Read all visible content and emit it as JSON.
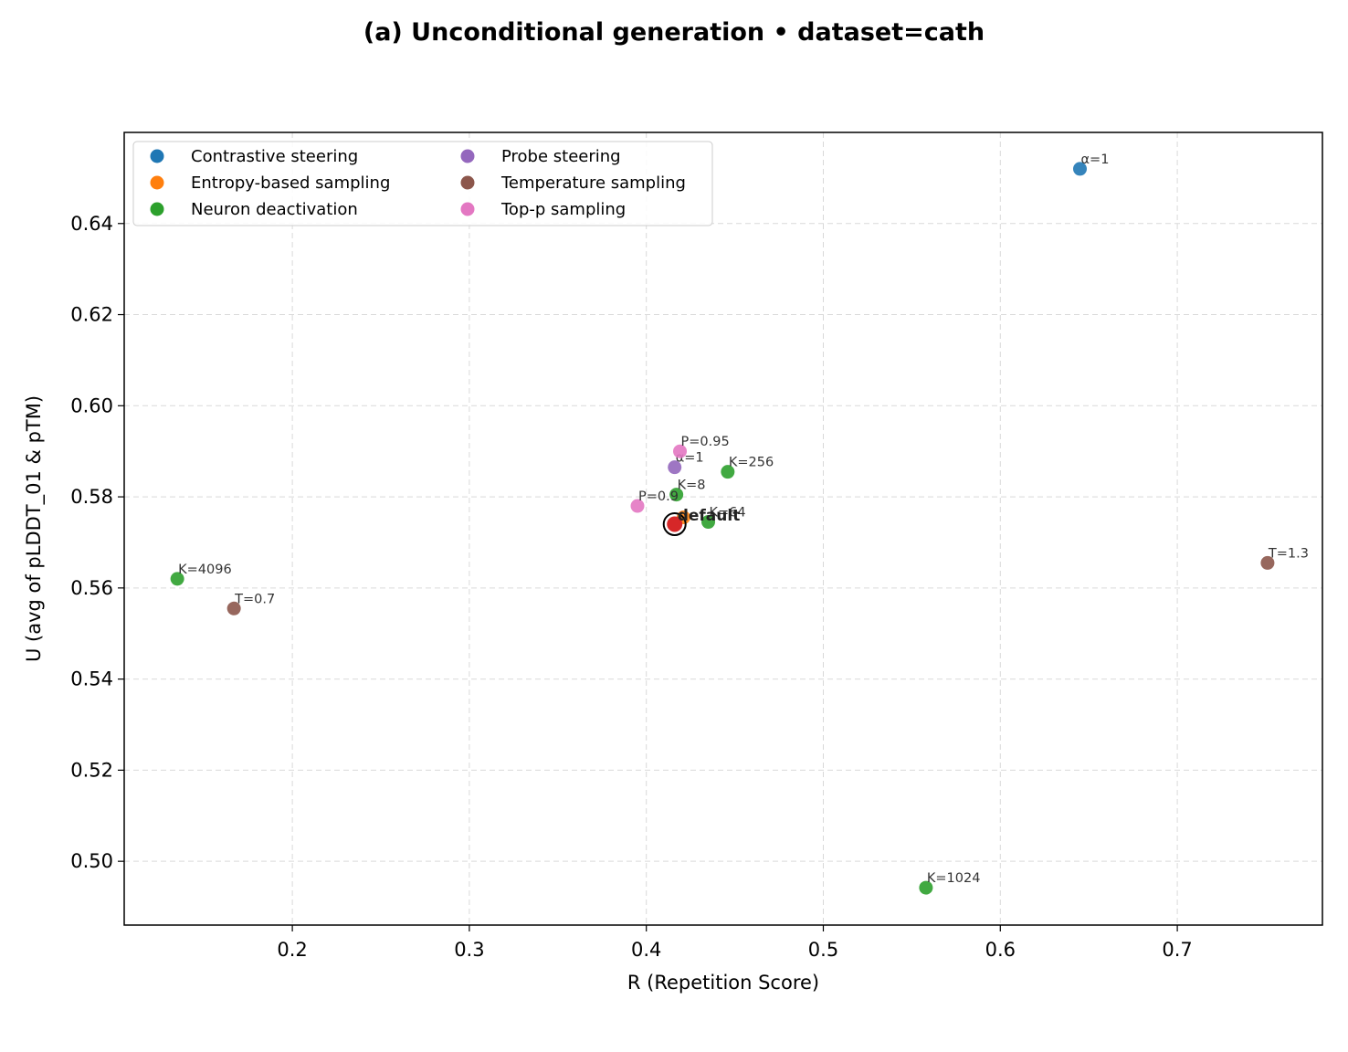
{
  "chart_data": {
    "type": "scatter",
    "title": "(a) Unconditional generation • dataset=cath",
    "xlabel": "R (Repetition Score)",
    "ylabel": "U (avg of pLDDT_01 & pTM)",
    "xlim": [
      0.105,
      0.782
    ],
    "ylim": [
      0.486,
      0.66
    ],
    "xticks": [
      0.2,
      0.3,
      0.4,
      0.5,
      0.6,
      0.7
    ],
    "yticks": [
      0.5,
      0.52,
      0.54,
      0.56,
      0.58,
      0.6,
      0.62,
      0.64
    ],
    "xtick_labels": [
      "0.2",
      "0.3",
      "0.4",
      "0.5",
      "0.6",
      "0.7"
    ],
    "ytick_labels": [
      "0.50",
      "0.52",
      "0.54",
      "0.56",
      "0.58",
      "0.60",
      "0.62",
      "0.64"
    ],
    "grid": true,
    "legend_position": "top-left",
    "series": [
      {
        "name": "Contrastive steering",
        "color": "#1f77b4",
        "points": [
          {
            "x": 0.645,
            "y": 0.652,
            "label": "α=1"
          }
        ]
      },
      {
        "name": "Entropy-based sampling",
        "color": "#ff7f0e",
        "points": [
          {
            "x": 0.421,
            "y": 0.5755,
            "label": ""
          }
        ]
      },
      {
        "name": "Neuron deactivation",
        "color": "#2ca02c",
        "points": [
          {
            "x": 0.135,
            "y": 0.562,
            "label": "K=4096"
          },
          {
            "x": 0.417,
            "y": 0.5805,
            "label": "K=8"
          },
          {
            "x": 0.446,
            "y": 0.5855,
            "label": "K=256"
          },
          {
            "x": 0.435,
            "y": 0.5745,
            "label": "K=64"
          },
          {
            "x": 0.558,
            "y": 0.4942,
            "label": "K=1024"
          }
        ]
      },
      {
        "name": "Probe steering",
        "color": "#9467bd",
        "points": [
          {
            "x": 0.416,
            "y": 0.5865,
            "label": "α=1"
          }
        ]
      },
      {
        "name": "Temperature sampling",
        "color": "#8c564b",
        "points": [
          {
            "x": 0.167,
            "y": 0.5555,
            "label": "T=0.7"
          },
          {
            "x": 0.751,
            "y": 0.5655,
            "label": "T=1.3"
          }
        ]
      },
      {
        "name": "Top-p sampling",
        "color": "#e377c2",
        "points": [
          {
            "x": 0.395,
            "y": 0.578,
            "label": "P=0.9"
          },
          {
            "x": 0.419,
            "y": 0.59,
            "label": "P=0.95"
          }
        ]
      }
    ],
    "default_point": {
      "x": 0.416,
      "y": 0.574,
      "label": "default",
      "color": "#d62728"
    }
  }
}
